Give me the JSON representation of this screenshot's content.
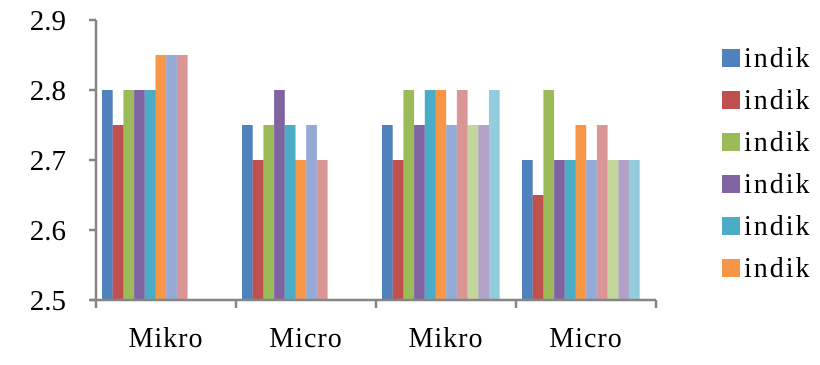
{
  "chart_data": {
    "type": "bar",
    "title": "",
    "xlabel": "",
    "ylabel": "",
    "ylim": [
      2.5,
      2.9
    ],
    "yticks": [
      "2.5",
      "2.6",
      "2.7",
      "2.8",
      "2.9"
    ],
    "grid": false,
    "legend_placement": "right",
    "categories": [
      "Mikro",
      "Micro",
      "Mikro",
      "Micro"
    ],
    "series": [
      {
        "name": "indik",
        "color": "#4F81BD",
        "values": [
          2.8,
          2.75,
          2.75,
          2.7
        ]
      },
      {
        "name": "indik",
        "color": "#C0504D",
        "values": [
          2.75,
          2.7,
          2.7,
          2.65
        ]
      },
      {
        "name": "indik",
        "color": "#9BBB59",
        "values": [
          2.8,
          2.75,
          2.8,
          2.8
        ]
      },
      {
        "name": "indik",
        "color": "#8064A2",
        "values": [
          2.8,
          2.8,
          2.75,
          2.7
        ]
      },
      {
        "name": "indik",
        "color": "#4BACC6",
        "values": [
          2.8,
          2.75,
          2.8,
          2.7
        ]
      },
      {
        "name": "indik",
        "color": "#F79646",
        "values": [
          2.85,
          2.7,
          2.8,
          2.75
        ]
      },
      {
        "name": "",
        "color": "#95A9D6",
        "values": [
          2.85,
          2.75,
          2.75,
          2.7
        ]
      },
      {
        "name": "",
        "color": "#D99694",
        "values": [
          2.85,
          2.7,
          2.8,
          2.75
        ]
      },
      {
        "name": "",
        "color": "#C3D69B",
        "values": [
          null,
          null,
          2.75,
          2.7
        ]
      },
      {
        "name": "",
        "color": "#B3A2C7",
        "values": [
          null,
          null,
          2.75,
          2.7
        ]
      },
      {
        "name": "",
        "color": "#93CDDD",
        "values": [
          null,
          null,
          2.8,
          2.7
        ]
      }
    ]
  }
}
